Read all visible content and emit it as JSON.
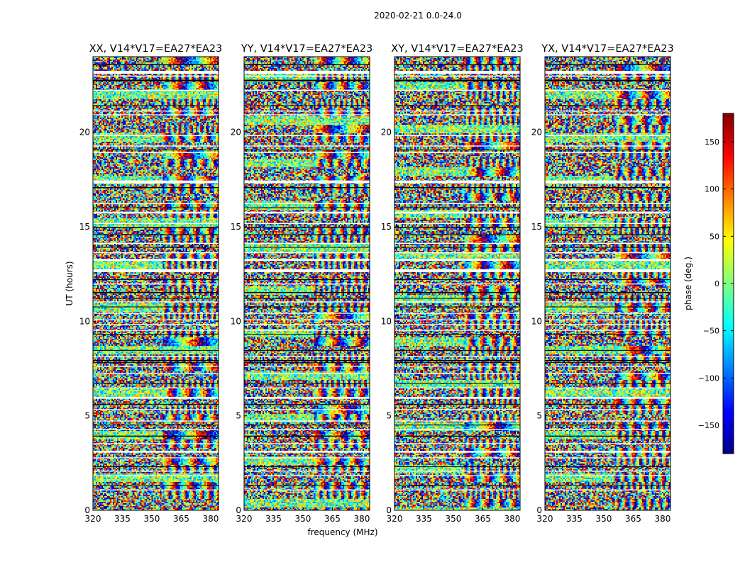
{
  "figure": {
    "suptitle": "2020-02-21 0.0-24.0",
    "xlabel": "frequency (MHz)",
    "ylabel": "UT (hours)"
  },
  "chart_data": {
    "type": "heatmap",
    "panels": [
      {
        "title": "XX, V14*V17=EA27*EA23",
        "seed": 11
      },
      {
        "title": "YY, V14*V17=EA27*EA23",
        "seed": 23
      },
      {
        "title": "XY, V14*V17=EA27*EA23",
        "seed": 37
      },
      {
        "title": "YX, V14*V17=EA27*EA23",
        "seed": 51
      }
    ],
    "x_ticks": [
      320,
      335,
      350,
      365,
      380
    ],
    "x_range": [
      320,
      384
    ],
    "y_ticks": [
      0,
      5,
      10,
      15,
      20
    ],
    "y_range": [
      0,
      24
    ],
    "colorbar": {
      "label": "phase (deg.)",
      "range": [
        -180,
        180
      ],
      "ticks": [
        -150,
        -100,
        -50,
        0,
        50,
        100,
        150
      ],
      "ticklabels": [
        "−150",
        "−100",
        "−50",
        "0",
        "50",
        "100",
        "150"
      ],
      "colormap": "jet"
    },
    "gaps_white_hours": [
      [
        23.1,
        23.25
      ],
      [
        22.95,
        23.0
      ],
      [
        22.2,
        22.25
      ],
      [
        21.1,
        21.15
      ],
      [
        20.9,
        20.95
      ],
      [
        19.8,
        19.85
      ],
      [
        19.25,
        19.3
      ],
      [
        18.9,
        18.95
      ],
      [
        17.3,
        17.45
      ],
      [
        16.2,
        16.25
      ],
      [
        15.7,
        15.8
      ],
      [
        15.15,
        15.2
      ],
      [
        14.1,
        14.15
      ],
      [
        13.6,
        13.65
      ],
      [
        13.2,
        13.3
      ],
      [
        12.6,
        12.75
      ],
      [
        11.95,
        12.0
      ],
      [
        11.0,
        11.05
      ],
      [
        10.4,
        10.45
      ],
      [
        10.05,
        10.1
      ],
      [
        9.8,
        9.85
      ],
      [
        9.5,
        9.55
      ],
      [
        8.1,
        8.15
      ],
      [
        7.6,
        7.65
      ],
      [
        7.2,
        7.25
      ],
      [
        6.45,
        6.5
      ],
      [
        5.9,
        6.0
      ],
      [
        5.3,
        5.35
      ],
      [
        4.7,
        4.75
      ],
      [
        4.25,
        4.3
      ],
      [
        3.5,
        3.55
      ],
      [
        3.05,
        3.15
      ],
      [
        2.75,
        2.8
      ],
      [
        2.05,
        2.1
      ],
      [
        1.8,
        1.85
      ],
      [
        1.05,
        1.1
      ]
    ],
    "gaps_black_hours": [
      [
        23.55,
        23.6
      ],
      [
        22.7,
        22.78
      ],
      [
        21.4,
        21.43
      ],
      [
        19.05,
        19.08
      ],
      [
        17.05,
        17.1
      ],
      [
        16.0,
        16.03
      ],
      [
        14.95,
        15.0
      ],
      [
        14.55,
        14.6
      ],
      [
        13.9,
        13.93
      ],
      [
        12.2,
        12.23
      ],
      [
        11.5,
        11.55
      ],
      [
        11.2,
        11.23
      ],
      [
        10.75,
        10.78
      ],
      [
        9.3,
        9.33
      ],
      [
        8.45,
        8.48
      ],
      [
        7.9,
        7.95
      ],
      [
        7.8,
        7.83
      ],
      [
        6.7,
        6.73
      ],
      [
        5.6,
        5.63
      ],
      [
        4.5,
        4.53
      ],
      [
        3.9,
        3.95
      ],
      [
        2.3,
        2.33
      ],
      [
        1.3,
        1.33
      ]
    ]
  }
}
